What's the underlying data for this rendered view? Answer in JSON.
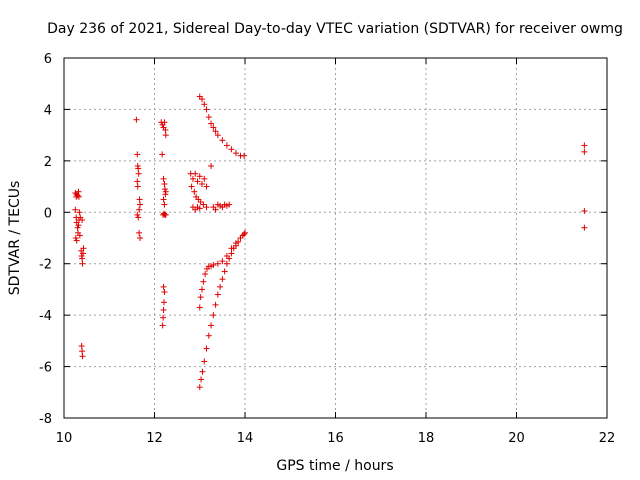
{
  "chart_data": {
    "type": "scatter",
    "title": "Day 236 of 2021, Sidereal Day-to-day VTEC variation (SDTVAR) for receiver owmg",
    "xlabel": "GPS time / hours",
    "ylabel": "SDTVAR / TECUs",
    "xlim": [
      10,
      22
    ],
    "ylim": [
      -8,
      6
    ],
    "x_ticks": [
      "10",
      "12",
      "14",
      "16",
      "18",
      "20",
      "22"
    ],
    "y_ticks": [
      "-8",
      "-6",
      "-4",
      "-2",
      "0",
      "2",
      "4",
      "6"
    ],
    "grid": true,
    "marker": "+",
    "color": "#e00000",
    "series": [
      {
        "values": [
          [
            10.25,
            0.75
          ],
          [
            10.27,
            0.6
          ],
          [
            10.28,
            0.7
          ],
          [
            10.3,
            0.65
          ],
          [
            10.32,
            0.8
          ],
          [
            10.33,
            0.6
          ],
          [
            10.25,
            0.1
          ],
          [
            10.27,
            -0.2
          ],
          [
            10.28,
            -0.4
          ],
          [
            10.3,
            -0.6
          ],
          [
            10.31,
            -0.8
          ],
          [
            10.32,
            -0.5
          ],
          [
            10.33,
            -0.3
          ],
          [
            10.34,
            0.0
          ],
          [
            10.26,
            -1.0
          ],
          [
            10.28,
            -1.1
          ],
          [
            10.35,
            -0.9
          ],
          [
            10.36,
            -0.2
          ],
          [
            10.4,
            -0.3
          ],
          [
            10.38,
            -1.5
          ],
          [
            10.39,
            -1.7
          ],
          [
            10.4,
            -1.8
          ],
          [
            10.41,
            -2.0
          ],
          [
            10.42,
            -1.6
          ],
          [
            10.43,
            -1.4
          ],
          [
            10.39,
            -5.2
          ],
          [
            10.4,
            -5.4
          ],
          [
            10.41,
            -5.6
          ],
          [
            11.6,
            3.6
          ],
          [
            11.62,
            2.25
          ],
          [
            11.63,
            1.8
          ],
          [
            11.64,
            1.7
          ],
          [
            11.65,
            1.5
          ],
          [
            11.62,
            1.2
          ],
          [
            11.63,
            1.0
          ],
          [
            11.62,
            -0.1
          ],
          [
            11.64,
            -0.2
          ],
          [
            11.66,
            0.1
          ],
          [
            11.68,
            0.3
          ],
          [
            11.67,
            0.5
          ],
          [
            11.66,
            -0.8
          ],
          [
            11.68,
            -1.0
          ],
          [
            12.15,
            3.5
          ],
          [
            12.18,
            3.4
          ],
          [
            12.2,
            3.3
          ],
          [
            12.22,
            3.5
          ],
          [
            12.24,
            3.2
          ],
          [
            12.25,
            3.0
          ],
          [
            12.17,
            2.25
          ],
          [
            12.2,
            1.3
          ],
          [
            12.22,
            1.1
          ],
          [
            12.23,
            0.9
          ],
          [
            12.24,
            0.7
          ],
          [
            12.25,
            0.8
          ],
          [
            12.2,
            0.5
          ],
          [
            12.22,
            0.3
          ],
          [
            12.19,
            -0.1
          ],
          [
            12.21,
            -0.05
          ],
          [
            12.23,
            -0.1
          ],
          [
            12.25,
            -0.1
          ],
          [
            12.2,
            -2.9
          ],
          [
            12.22,
            -3.1
          ],
          [
            12.21,
            -3.5
          ],
          [
            12.2,
            -3.8
          ],
          [
            12.19,
            -4.1
          ],
          [
            12.18,
            -4.4
          ],
          [
            13.0,
            4.5
          ],
          [
            13.05,
            4.4
          ],
          [
            13.1,
            4.2
          ],
          [
            13.15,
            4.0
          ],
          [
            13.2,
            3.7
          ],
          [
            13.25,
            3.45
          ],
          [
            13.3,
            3.3
          ],
          [
            13.35,
            3.15
          ],
          [
            13.4,
            3.0
          ],
          [
            13.5,
            2.8
          ],
          [
            13.6,
            2.6
          ],
          [
            13.7,
            2.45
          ],
          [
            13.8,
            2.3
          ],
          [
            13.9,
            2.2
          ],
          [
            13.98,
            2.2
          ],
          [
            12.8,
            1.5
          ],
          [
            12.85,
            1.3
          ],
          [
            12.9,
            1.5
          ],
          [
            12.95,
            1.2
          ],
          [
            13.0,
            1.4
          ],
          [
            13.05,
            1.1
          ],
          [
            13.1,
            1.3
          ],
          [
            13.15,
            1.0
          ],
          [
            12.82,
            1.0
          ],
          [
            12.88,
            0.8
          ],
          [
            12.92,
            0.6
          ],
          [
            12.97,
            0.5
          ],
          [
            13.02,
            0.4
          ],
          [
            13.08,
            0.3
          ],
          [
            13.15,
            0.2
          ],
          [
            13.25,
            1.8
          ],
          [
            13.3,
            0.2
          ],
          [
            13.35,
            0.1
          ],
          [
            13.4,
            0.3
          ],
          [
            13.45,
            0.25
          ],
          [
            13.5,
            0.2
          ],
          [
            13.55,
            0.3
          ],
          [
            13.6,
            0.25
          ],
          [
            13.65,
            0.3
          ],
          [
            12.85,
            0.2
          ],
          [
            12.9,
            0.1
          ],
          [
            12.95,
            0.2
          ],
          [
            13.0,
            0.15
          ],
          [
            13.0,
            -3.7
          ],
          [
            13.02,
            -3.3
          ],
          [
            13.05,
            -3.0
          ],
          [
            13.08,
            -2.7
          ],
          [
            13.12,
            -2.4
          ],
          [
            13.16,
            -2.2
          ],
          [
            13.2,
            -2.1
          ],
          [
            13.25,
            -2.1
          ],
          [
            13.3,
            -2.05
          ],
          [
            13.4,
            -2.0
          ],
          [
            13.5,
            -1.9
          ],
          [
            13.6,
            -1.7
          ],
          [
            13.7,
            -1.4
          ],
          [
            13.8,
            -1.2
          ],
          [
            13.9,
            -1.0
          ],
          [
            13.98,
            -0.85
          ],
          [
            13.0,
            -6.8
          ],
          [
            13.03,
            -6.5
          ],
          [
            13.06,
            -6.2
          ],
          [
            13.1,
            -5.8
          ],
          [
            13.15,
            -5.3
          ],
          [
            13.2,
            -4.8
          ],
          [
            13.25,
            -4.4
          ],
          [
            13.3,
            -4.0
          ],
          [
            13.35,
            -3.6
          ],
          [
            13.4,
            -3.2
          ],
          [
            13.45,
            -2.9
          ],
          [
            13.5,
            -2.6
          ],
          [
            13.55,
            -2.3
          ],
          [
            13.6,
            -2.0
          ],
          [
            13.65,
            -1.8
          ],
          [
            13.7,
            -1.6
          ],
          [
            13.75,
            -1.4
          ],
          [
            13.8,
            -1.3
          ],
          [
            13.85,
            -1.15
          ],
          [
            13.9,
            -1.0
          ],
          [
            13.95,
            -0.9
          ],
          [
            14.0,
            -0.8
          ],
          [
            21.5,
            2.6
          ],
          [
            21.5,
            2.35
          ],
          [
            21.5,
            0.05
          ],
          [
            21.5,
            -0.6
          ]
        ]
      }
    ]
  }
}
